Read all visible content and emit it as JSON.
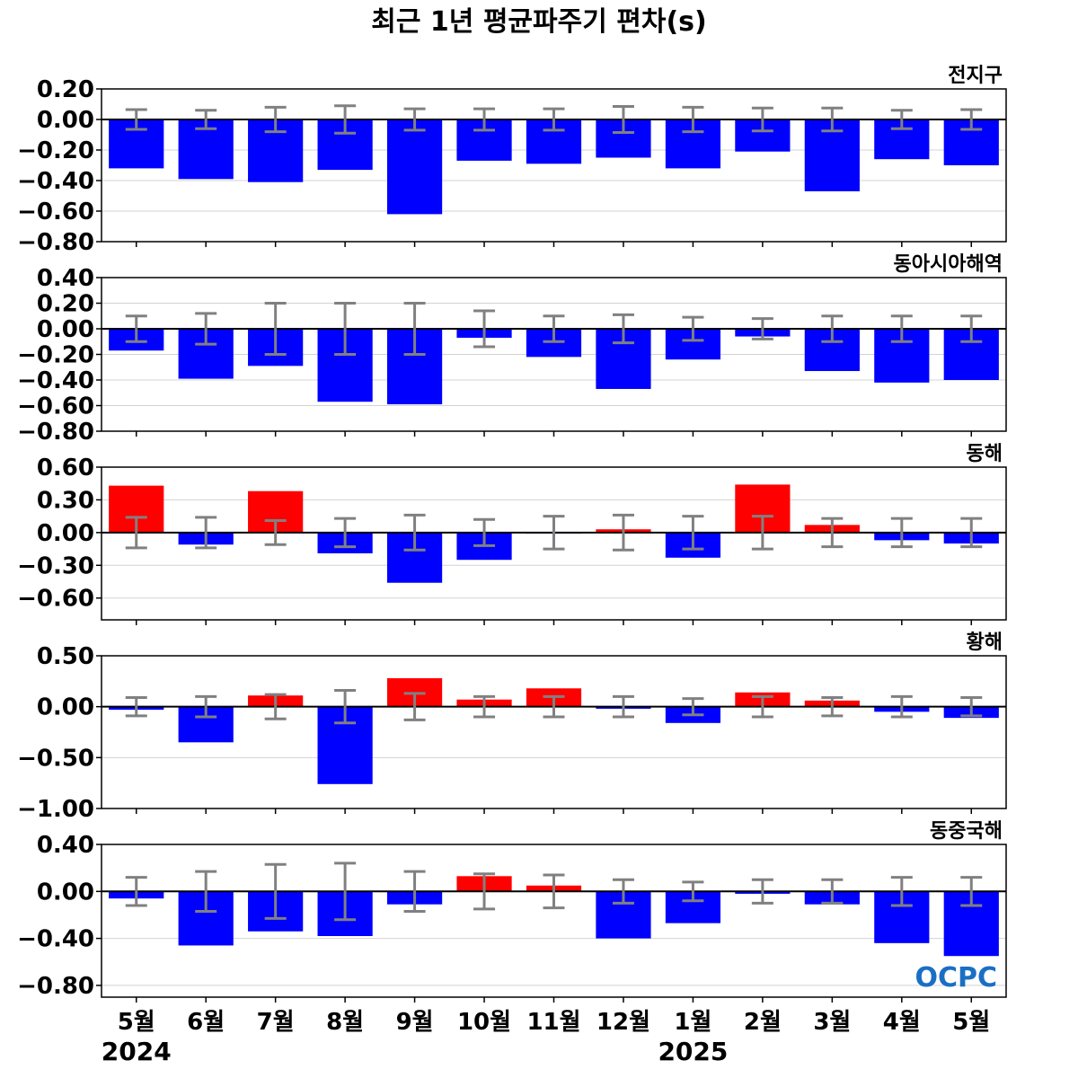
{
  "title": "최근 1년 평균파주기 편차(s)",
  "logo": "OCPC",
  "colors": {
    "positive": "#ff0000",
    "negative": "#0000ff",
    "error_bar": "#808080",
    "grid": "#d3d3d3",
    "zero_line": "#000000"
  },
  "chart_data": [
    {
      "type": "bar",
      "title": "전지구",
      "categories": [
        "5월",
        "6월",
        "7월",
        "8월",
        "9월",
        "10월",
        "11월",
        "12월",
        "1월",
        "2월",
        "3월",
        "4월",
        "5월"
      ],
      "years": [
        "2024",
        "2025"
      ],
      "values": [
        -0.32,
        -0.39,
        -0.41,
        -0.33,
        -0.62,
        -0.27,
        -0.29,
        -0.25,
        -0.32,
        -0.21,
        -0.47,
        -0.26,
        -0.3
      ],
      "error": [
        0.065,
        0.06,
        0.08,
        0.09,
        0.07,
        0.07,
        0.07,
        0.085,
        0.08,
        0.075,
        0.075,
        0.06,
        0.065
      ],
      "ylim": [
        -0.8,
        0.2
      ],
      "yticks": [
        0.2,
        0.0,
        -0.2,
        -0.4,
        -0.6,
        -0.8
      ],
      "ytick_labels": [
        "0.20",
        "0.00",
        "−0.20",
        "−0.40",
        "−0.60",
        "−0.80"
      ]
    },
    {
      "type": "bar",
      "title": "동아시아해역",
      "categories": [
        "5월",
        "6월",
        "7월",
        "8월",
        "9월",
        "10월",
        "11월",
        "12월",
        "1월",
        "2월",
        "3월",
        "4월",
        "5월"
      ],
      "values": [
        -0.17,
        -0.39,
        -0.29,
        -0.57,
        -0.59,
        -0.07,
        -0.22,
        -0.47,
        -0.24,
        -0.06,
        -0.33,
        -0.42,
        -0.4
      ],
      "error": [
        0.1,
        0.12,
        0.2,
        0.2,
        0.2,
        0.14,
        0.1,
        0.11,
        0.09,
        0.08,
        0.1,
        0.1,
        0.1
      ],
      "ylim": [
        -0.8,
        0.4
      ],
      "yticks": [
        0.4,
        0.2,
        0.0,
        -0.2,
        -0.4,
        -0.6,
        -0.8
      ],
      "ytick_labels": [
        "0.40",
        "0.20",
        "0.00",
        "−0.20",
        "−0.40",
        "−0.60",
        "−0.80"
      ]
    },
    {
      "type": "bar",
      "title": "동해",
      "categories": [
        "5월",
        "6월",
        "7월",
        "8월",
        "9월",
        "10월",
        "11월",
        "12월",
        "1월",
        "2월",
        "3월",
        "4월",
        "5월"
      ],
      "values": [
        0.43,
        -0.11,
        0.38,
        -0.19,
        -0.46,
        -0.25,
        -0.01,
        0.03,
        -0.23,
        0.44,
        0.07,
        -0.07,
        -0.1
      ],
      "error": [
        0.14,
        0.14,
        0.11,
        0.13,
        0.16,
        0.12,
        0.15,
        0.16,
        0.15,
        0.15,
        0.13,
        0.13,
        0.13
      ],
      "ylim": [
        -0.8,
        0.6
      ],
      "yticks": [
        0.6,
        0.3,
        0.0,
        -0.3,
        -0.6
      ],
      "ytick_labels": [
        "0.60",
        "0.30",
        "0.00",
        "−0.30",
        "−0.60"
      ]
    },
    {
      "type": "bar",
      "title": "황해",
      "categories": [
        "5월",
        "6월",
        "7월",
        "8월",
        "9월",
        "10월",
        "11월",
        "12월",
        "1월",
        "2월",
        "3월",
        "4월",
        "5월"
      ],
      "values": [
        -0.03,
        -0.35,
        0.11,
        -0.76,
        0.28,
        0.07,
        0.18,
        -0.02,
        -0.16,
        0.14,
        0.06,
        -0.05,
        -0.11
      ],
      "error": [
        0.09,
        0.1,
        0.12,
        0.16,
        0.13,
        0.1,
        0.1,
        0.1,
        0.08,
        0.1,
        0.09,
        0.1,
        0.09
      ],
      "ylim": [
        -1.0,
        0.5
      ],
      "yticks": [
        0.5,
        0.0,
        -0.5,
        -1.0
      ],
      "ytick_labels": [
        "0.50",
        "0.00",
        "−0.50",
        "−1.00"
      ]
    },
    {
      "type": "bar",
      "title": "동중국해",
      "categories": [
        "5월",
        "6월",
        "7월",
        "8월",
        "9월",
        "10월",
        "11월",
        "12월",
        "1월",
        "2월",
        "3월",
        "4월",
        "5월"
      ],
      "values": [
        -0.06,
        -0.46,
        -0.34,
        -0.38,
        -0.11,
        0.13,
        0.05,
        -0.4,
        -0.27,
        -0.02,
        -0.11,
        -0.44,
        -0.55
      ],
      "error": [
        0.12,
        0.17,
        0.23,
        0.24,
        0.17,
        0.15,
        0.14,
        0.1,
        0.08,
        0.1,
        0.1,
        0.12,
        0.12
      ],
      "ylim": [
        -0.9,
        0.4
      ],
      "yticks": [
        0.4,
        0.0,
        -0.4,
        -0.8
      ],
      "ytick_labels": [
        "0.40",
        "0.00",
        "−0.40",
        "−0.80"
      ]
    }
  ]
}
